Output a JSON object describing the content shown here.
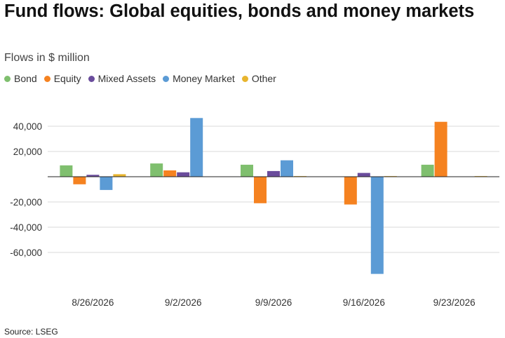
{
  "title": "Fund flows: Global equities, bonds and money markets",
  "subtitle": "Flows in $ million",
  "source": "Source: LSEG",
  "chart_data": {
    "type": "bar",
    "title": "Fund flows: Global equities, bonds and money markets",
    "subtitle": "Flows in $ million",
    "categories": [
      "8/26/2026",
      "9/2/2026",
      "9/9/2026",
      "9/16/2026",
      "9/23/2026"
    ],
    "series": [
      {
        "name": "Bond",
        "color": "#7fbf6e",
        "values": [
          9000,
          10500,
          9500,
          0,
          9500
        ]
      },
      {
        "name": "Equity",
        "color": "#f58220",
        "values": [
          -6000,
          5000,
          -21000,
          -22000,
          43500
        ]
      },
      {
        "name": "Mixed Assets",
        "color": "#6a4c9c",
        "values": [
          1500,
          3500,
          4500,
          3000,
          0
        ]
      },
      {
        "name": "Money Market",
        "color": "#5b9bd5",
        "values": [
          -10500,
          46500,
          13000,
          -77000,
          0
        ]
      },
      {
        "name": "Other",
        "color": "#e8b52e",
        "values": [
          2000,
          0,
          500,
          500,
          500
        ]
      }
    ],
    "yticks": [
      40000,
      20000,
      -20000,
      -40000,
      -60000
    ],
    "ytick_labels": [
      "40,000",
      "20,000",
      "-20,000",
      "-40,000",
      "-60,000"
    ],
    "ylim": [
      -77000,
      47000
    ],
    "grid": true,
    "legend_position": "top-left"
  }
}
